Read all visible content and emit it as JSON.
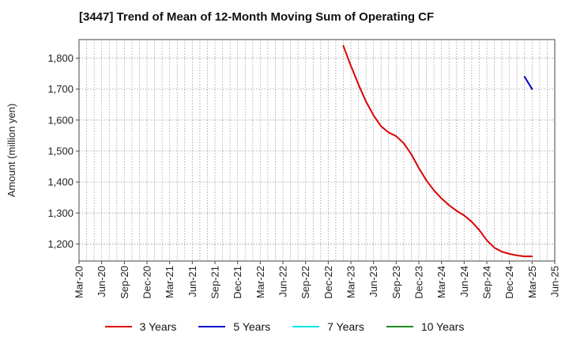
{
  "chart_data": {
    "type": "line",
    "title": "[3447]  Trend of Mean of 12-Month Moving Sum of Operating CF",
    "xlabel": "",
    "ylabel": "Amount (million yen)",
    "ylim": [
      1145,
      1860
    ],
    "y_ticks": [
      1200,
      1300,
      1400,
      1500,
      1600,
      1700,
      1800
    ],
    "y_tick_labels": [
      "1,200",
      "1,300",
      "1,400",
      "1,500",
      "1,600",
      "1,700",
      "1,800"
    ],
    "x_tick_labels": [
      "Mar-20",
      "Jun-20",
      "Sep-20",
      "Dec-20",
      "Mar-21",
      "Jun-21",
      "Sep-21",
      "Dec-21",
      "Mar-22",
      "Jun-22",
      "Sep-22",
      "Dec-22",
      "Mar-23",
      "Jun-23",
      "Sep-23",
      "Dec-23",
      "Mar-24",
      "Jun-24",
      "Sep-24",
      "Dec-24",
      "Mar-25",
      "Jun-25"
    ],
    "x_start": "2020-03",
    "x_end": "2025-06",
    "grid": true,
    "legend_position": "bottom",
    "series": [
      {
        "name": "3 Years",
        "color": "#dd0000",
        "x": [
          "2023-02",
          "2023-03",
          "2023-04",
          "2023-05",
          "2023-06",
          "2023-07",
          "2023-08",
          "2023-09",
          "2023-10",
          "2023-11",
          "2023-12",
          "2024-01",
          "2024-02",
          "2024-03",
          "2024-04",
          "2024-05",
          "2024-06",
          "2024-07",
          "2024-08",
          "2024-09",
          "2024-10",
          "2024-11",
          "2024-12",
          "2025-01",
          "2025-02",
          "2025-03"
        ],
        "values": [
          1840,
          1775,
          1715,
          1660,
          1615,
          1580,
          1560,
          1548,
          1525,
          1490,
          1445,
          1405,
          1373,
          1347,
          1325,
          1307,
          1292,
          1272,
          1245,
          1212,
          1188,
          1175,
          1168,
          1163,
          1160,
          1160
        ]
      },
      {
        "name": "5 Years",
        "color": "#0000cc",
        "x": [
          "2025-02",
          "2025-03"
        ],
        "values": [
          1740,
          1700
        ]
      },
      {
        "name": "7 Years",
        "color": "#00e5ee",
        "x": [],
        "values": []
      },
      {
        "name": "10 Years",
        "color": "#228b22",
        "x": [],
        "values": []
      }
    ]
  }
}
